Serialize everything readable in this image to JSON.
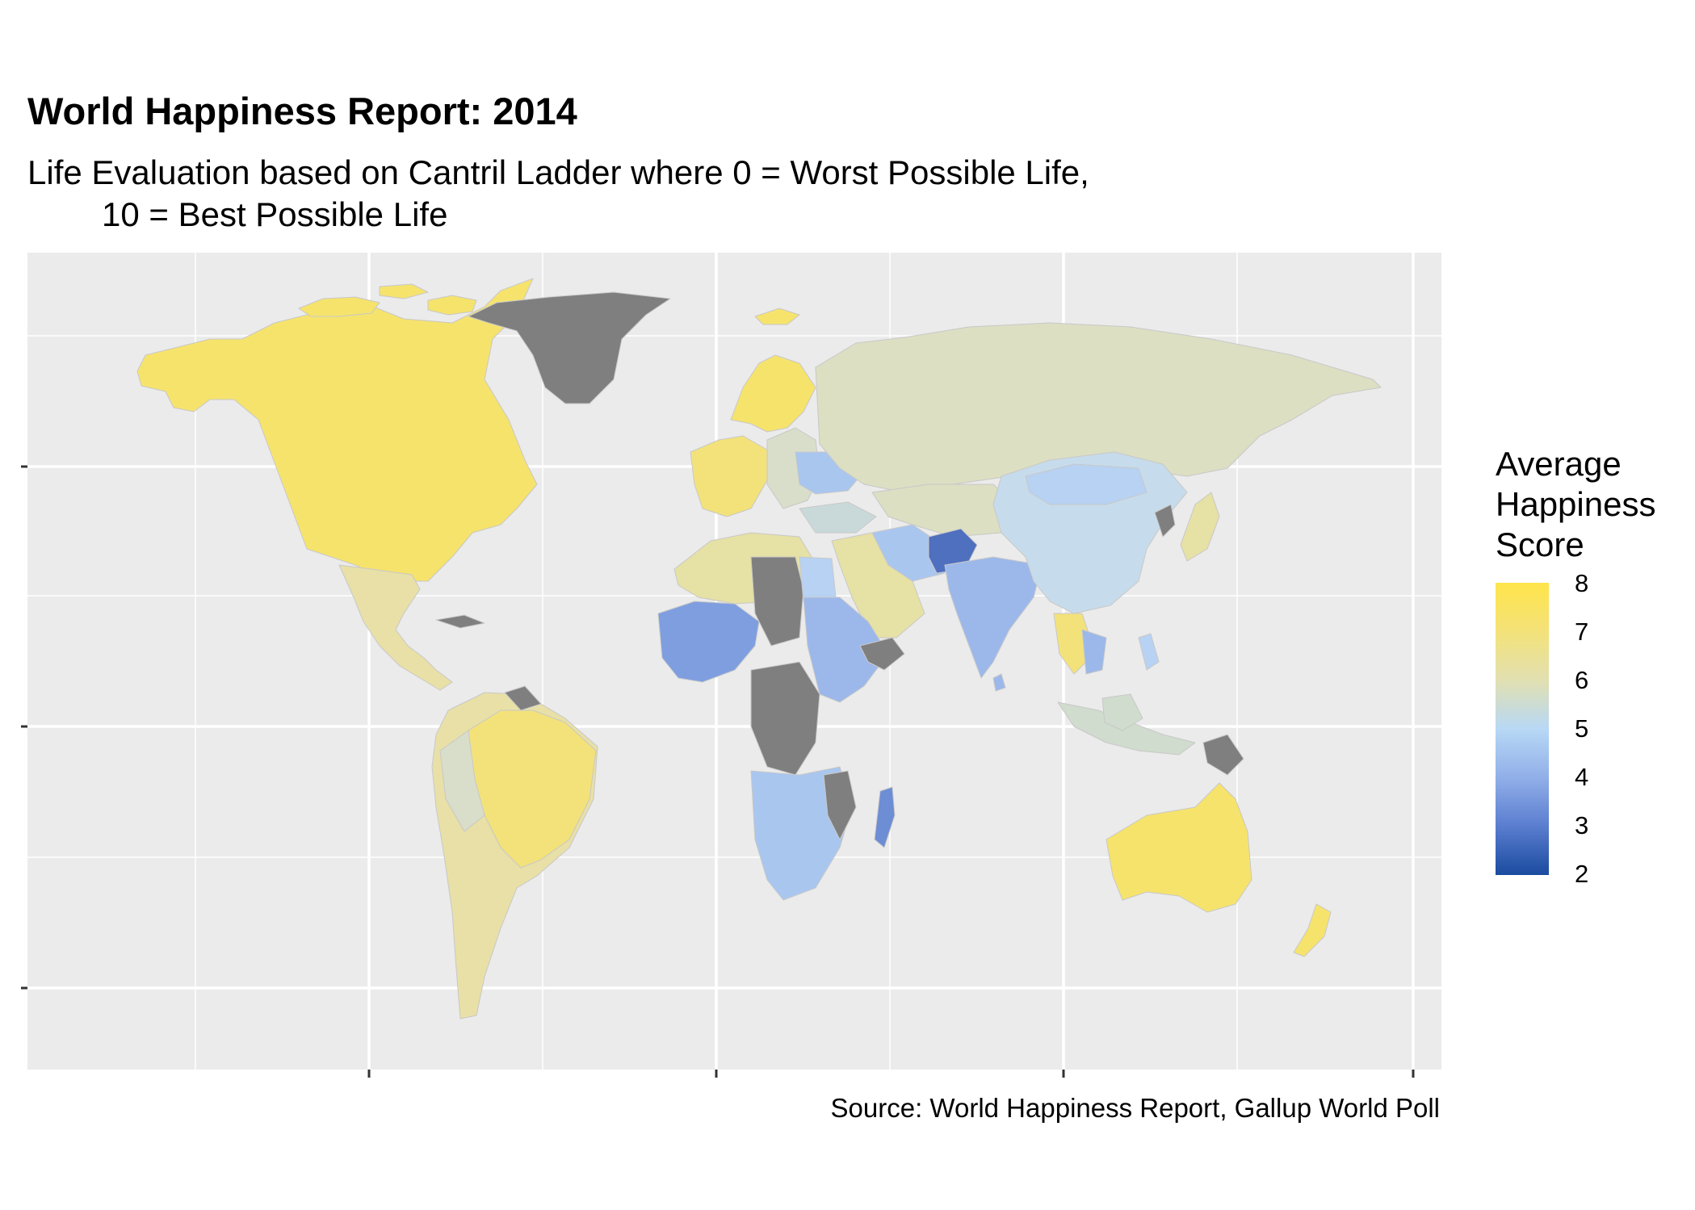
{
  "title": "World Happiness Report: 2014",
  "subtitle_line1": "Life Evaluation based on Cantril Ladder where 0 = Worst Possible Life,",
  "subtitle_line2": "10 = Best Possible Life",
  "caption": "Source: World Happiness Report, Gallup World Poll",
  "legend": {
    "title_lines": [
      "Average",
      "Happiness",
      "Score"
    ],
    "labels": [
      "8",
      "7",
      "6",
      "5",
      "4",
      "3",
      "2"
    ],
    "color_high": "#ffe44a",
    "color_low": "#1a4b9f",
    "missing_color": "#7f7f7f"
  },
  "colors": {
    "background": "#ffffff",
    "panel": "#ebebeb",
    "grid": "#ffffff"
  }
}
